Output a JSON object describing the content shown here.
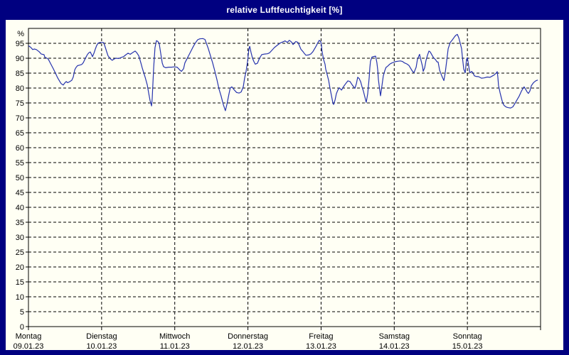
{
  "window": {
    "title": "relative Luftfeuchtigkeit [%]"
  },
  "colors": {
    "frame_bg": "#000080",
    "panel_bg": "#fffff4",
    "line": "#2633ad",
    "grid": "#000000",
    "title_text": "#ffffff"
  },
  "chart_data": {
    "type": "line",
    "title": "relative Luftfeuchtigkeit [%]",
    "ylabel": "%",
    "ylim": [
      0,
      100
    ],
    "y_ticks": [
      0,
      5,
      10,
      15,
      20,
      25,
      30,
      35,
      40,
      45,
      50,
      55,
      60,
      65,
      70,
      75,
      80,
      85,
      90,
      95
    ],
    "grid": "black dashed; horizontal every 5%, vertical at each day boundary",
    "legend_position": "none",
    "x_total_hours": 168,
    "x_days": [
      {
        "name": "Montag",
        "date": "09.01.23"
      },
      {
        "name": "Dienstag",
        "date": "10.01.23"
      },
      {
        "name": "Mittwoch",
        "date": "11.01.23"
      },
      {
        "name": "Donnerstag",
        "date": "12.01.23"
      },
      {
        "name": "Freitag",
        "date": "13.01.23"
      },
      {
        "name": "Samstag",
        "date": "14.01.23"
      },
      {
        "name": "Sonntag",
        "date": "15.01.23"
      }
    ],
    "series": [
      {
        "name": "relative Luftfeuchtigkeit",
        "unit": "%",
        "color": "#2633ad",
        "points": [
          [
            0,
            94.2
          ],
          [
            0.7,
            93.7
          ],
          [
            1.4,
            92.9
          ],
          [
            1.9,
            93.1
          ],
          [
            2.6,
            92.9
          ],
          [
            3.5,
            92.2
          ],
          [
            4.2,
            91.4
          ],
          [
            5.1,
            91.2
          ],
          [
            5.4,
            90.3
          ],
          [
            6.1,
            90.0
          ],
          [
            6.5,
            89.7
          ],
          [
            7.2,
            88.3
          ],
          [
            8.2,
            86.4
          ],
          [
            8.9,
            84.9
          ],
          [
            9.6,
            83.4
          ],
          [
            10.3,
            82.2
          ],
          [
            10.7,
            81.5
          ],
          [
            11.4,
            81.0
          ],
          [
            11.9,
            81.7
          ],
          [
            12.4,
            82.2
          ],
          [
            12.8,
            81.8
          ],
          [
            13.3,
            82.0
          ],
          [
            14.2,
            82.6
          ],
          [
            14.7,
            83.7
          ],
          [
            15.2,
            86.1
          ],
          [
            15.6,
            86.9
          ],
          [
            16.1,
            87.5
          ],
          [
            16.8,
            87.7
          ],
          [
            17.5,
            87.9
          ],
          [
            18.0,
            88.5
          ],
          [
            18.4,
            89.4
          ],
          [
            18.9,
            90.4
          ],
          [
            19.4,
            91.3
          ],
          [
            19.8,
            91.8
          ],
          [
            20.3,
            92.1
          ],
          [
            20.8,
            91.0
          ],
          [
            21.0,
            90.5
          ],
          [
            21.5,
            91.7
          ],
          [
            21.9,
            93.0
          ],
          [
            22.4,
            94.3
          ],
          [
            22.9,
            95.1
          ],
          [
            23.6,
            95.3
          ],
          [
            24.3,
            95.3
          ],
          [
            24.7,
            95.2
          ],
          [
            25.2,
            93.7
          ],
          [
            25.7,
            92.1
          ],
          [
            26.1,
            90.8
          ],
          [
            26.6,
            90.2
          ],
          [
            27.1,
            89.6
          ],
          [
            27.5,
            89.3
          ],
          [
            28.0,
            89.7
          ],
          [
            28.7,
            90.0
          ],
          [
            29.6,
            89.9
          ],
          [
            30.3,
            90.2
          ],
          [
            31.3,
            90.6
          ],
          [
            32.0,
            91.2
          ],
          [
            32.7,
            91.7
          ],
          [
            33.4,
            91.3
          ],
          [
            34.1,
            91.8
          ],
          [
            35.0,
            92.4
          ],
          [
            35.5,
            91.9
          ],
          [
            36.2,
            90.8
          ],
          [
            36.9,
            88.4
          ],
          [
            37.3,
            86.8
          ],
          [
            37.8,
            85.2
          ],
          [
            38.3,
            83.6
          ],
          [
            39.0,
            81.0
          ],
          [
            39.4,
            78.5
          ],
          [
            39.9,
            75.8
          ],
          [
            40.4,
            74.0
          ],
          [
            40.6,
            76.5
          ],
          [
            41.1,
            87.0
          ],
          [
            41.5,
            93.5
          ],
          [
            42.0,
            95.9
          ],
          [
            42.5,
            95.6
          ],
          [
            42.9,
            94.8
          ],
          [
            43.4,
            91.6
          ],
          [
            43.9,
            88.4
          ],
          [
            44.3,
            87.2
          ],
          [
            45.0,
            86.8
          ],
          [
            46.0,
            87.0
          ],
          [
            46.9,
            87.0
          ],
          [
            47.8,
            87.1
          ],
          [
            48.8,
            87.0
          ],
          [
            49.7,
            86.0
          ],
          [
            50.2,
            85.6
          ],
          [
            50.9,
            86.5
          ],
          [
            51.3,
            88.4
          ],
          [
            52.0,
            89.8
          ],
          [
            52.7,
            91.2
          ],
          [
            53.4,
            92.6
          ],
          [
            54.1,
            94.0
          ],
          [
            54.8,
            95.2
          ],
          [
            55.5,
            96.2
          ],
          [
            56.2,
            96.5
          ],
          [
            57.2,
            96.6
          ],
          [
            57.9,
            96.3
          ],
          [
            58.3,
            95.2
          ],
          [
            59.0,
            93.2
          ],
          [
            59.7,
            90.8
          ],
          [
            60.4,
            88.5
          ],
          [
            61.1,
            85.8
          ],
          [
            61.8,
            82.9
          ],
          [
            62.5,
            79.7
          ],
          [
            63.2,
            77.3
          ],
          [
            63.9,
            74.5
          ],
          [
            64.6,
            72.4
          ],
          [
            65.1,
            74.5
          ],
          [
            65.8,
            78.1
          ],
          [
            66.2,
            80.0
          ],
          [
            66.7,
            80.4
          ],
          [
            67.4,
            79.5
          ],
          [
            68.3,
            78.5
          ],
          [
            69.1,
            78.3
          ],
          [
            69.8,
            78.7
          ],
          [
            70.5,
            80.5
          ],
          [
            70.9,
            83.3
          ],
          [
            71.4,
            85.6
          ],
          [
            71.9,
            89.0
          ],
          [
            72.3,
            93.0
          ],
          [
            72.6,
            94.0
          ],
          [
            73.0,
            92.0
          ],
          [
            73.5,
            90.0
          ],
          [
            74.0,
            88.8
          ],
          [
            74.4,
            88.0
          ],
          [
            75.1,
            88.3
          ],
          [
            75.8,
            90.0
          ],
          [
            76.5,
            91.2
          ],
          [
            77.5,
            91.4
          ],
          [
            78.4,
            91.5
          ],
          [
            79.1,
            91.8
          ],
          [
            79.8,
            92.6
          ],
          [
            80.7,
            93.6
          ],
          [
            81.7,
            94.4
          ],
          [
            82.6,
            95.1
          ],
          [
            83.5,
            95.5
          ],
          [
            84.2,
            95.8
          ],
          [
            84.9,
            95.3
          ],
          [
            85.6,
            96.0
          ],
          [
            86.3,
            95.4
          ],
          [
            86.8,
            94.6
          ],
          [
            87.3,
            95.2
          ],
          [
            87.7,
            95.6
          ],
          [
            88.4,
            95.3
          ],
          [
            88.9,
            94.2
          ],
          [
            89.4,
            93.0
          ],
          [
            90.1,
            92.2
          ],
          [
            90.5,
            91.6
          ],
          [
            91.0,
            91.0
          ],
          [
            91.9,
            91.1
          ],
          [
            92.6,
            91.4
          ],
          [
            93.3,
            92.2
          ],
          [
            94.0,
            93.4
          ],
          [
            94.5,
            94.3
          ],
          [
            95.0,
            95.3
          ],
          [
            95.4,
            96.0
          ],
          [
            95.9,
            95.5
          ],
          [
            96.1,
            94.5
          ],
          [
            96.3,
            92.4
          ],
          [
            96.8,
            89.6
          ],
          [
            97.3,
            88.0
          ],
          [
            97.5,
            86.4
          ],
          [
            98.0,
            84.5
          ],
          [
            98.5,
            82.5
          ],
          [
            98.9,
            80.0
          ],
          [
            99.4,
            77.5
          ],
          [
            99.9,
            74.9
          ],
          [
            100.1,
            74.5
          ],
          [
            100.6,
            76.0
          ],
          [
            101.0,
            78.1
          ],
          [
            101.5,
            79.3
          ],
          [
            102.0,
            80.1
          ],
          [
            102.7,
            79.3
          ],
          [
            103.4,
            80.5
          ],
          [
            104.1,
            81.5
          ],
          [
            104.8,
            82.4
          ],
          [
            105.5,
            82.2
          ],
          [
            106.2,
            81.1
          ],
          [
            106.6,
            80.5
          ],
          [
            107.1,
            79.9
          ],
          [
            107.6,
            81.5
          ],
          [
            108.0,
            83.6
          ],
          [
            108.5,
            83.2
          ],
          [
            109.0,
            82.1
          ],
          [
            109.4,
            80.5
          ],
          [
            109.9,
            78.9
          ],
          [
            110.4,
            76.9
          ],
          [
            110.8,
            75.2
          ],
          [
            111.3,
            78.1
          ],
          [
            111.8,
            83.6
          ],
          [
            112.0,
            86.8
          ],
          [
            112.2,
            89.0
          ],
          [
            112.7,
            90.4
          ],
          [
            113.4,
            90.6
          ],
          [
            113.9,
            90.7
          ],
          [
            114.3,
            88.5
          ],
          [
            114.6,
            86.1
          ],
          [
            114.8,
            82.9
          ],
          [
            115.3,
            78.9
          ],
          [
            115.5,
            77.4
          ],
          [
            116.0,
            80.9
          ],
          [
            116.4,
            84.1
          ],
          [
            116.9,
            85.8
          ],
          [
            117.3,
            86.9
          ],
          [
            117.8,
            87.3
          ],
          [
            118.5,
            88.0
          ],
          [
            119.2,
            88.4
          ],
          [
            119.9,
            88.7
          ],
          [
            120.6,
            88.9
          ],
          [
            121.3,
            89.0
          ],
          [
            122.0,
            89.1
          ],
          [
            122.7,
            88.9
          ],
          [
            123.4,
            88.4
          ],
          [
            124.1,
            88.1
          ],
          [
            124.8,
            87.6
          ],
          [
            125.5,
            86.4
          ],
          [
            126.0,
            85.6
          ],
          [
            126.5,
            85.2
          ],
          [
            127.2,
            87.0
          ],
          [
            127.6,
            89.6
          ],
          [
            128.3,
            91.3
          ],
          [
            128.8,
            89.2
          ],
          [
            129.3,
            87.2
          ],
          [
            129.5,
            85.6
          ],
          [
            130.0,
            86.8
          ],
          [
            130.4,
            89.2
          ],
          [
            130.9,
            91.0
          ],
          [
            131.4,
            92.4
          ],
          [
            131.8,
            92.1
          ],
          [
            132.5,
            90.8
          ],
          [
            133.0,
            90.0
          ],
          [
            133.5,
            89.6
          ],
          [
            134.0,
            88.8
          ],
          [
            134.4,
            88.7
          ],
          [
            134.9,
            86.0
          ],
          [
            135.3,
            84.8
          ],
          [
            135.8,
            83.6
          ],
          [
            136.3,
            82.5
          ],
          [
            136.7,
            85.0
          ],
          [
            137.2,
            89.0
          ],
          [
            137.7,
            93.2
          ],
          [
            138.4,
            95.3
          ],
          [
            139.1,
            96.2
          ],
          [
            139.8,
            97.2
          ],
          [
            140.2,
            97.7
          ],
          [
            140.7,
            98.0
          ],
          [
            141.2,
            96.8
          ],
          [
            141.6,
            95.2
          ],
          [
            142.1,
            93.2
          ],
          [
            142.3,
            90.8
          ],
          [
            142.8,
            86.4
          ],
          [
            143.3,
            85.1
          ],
          [
            143.7,
            89.6
          ],
          [
            144.0,
            90.2
          ],
          [
            144.4,
            87.6
          ],
          [
            144.7,
            85.6
          ],
          [
            144.9,
            85.1
          ],
          [
            145.4,
            85.6
          ],
          [
            145.8,
            85.1
          ],
          [
            146.3,
            84.1
          ],
          [
            146.8,
            83.9
          ],
          [
            147.7,
            83.8
          ],
          [
            148.6,
            83.3
          ],
          [
            149.5,
            83.4
          ],
          [
            150.5,
            83.7
          ],
          [
            151.4,
            83.6
          ],
          [
            152.1,
            84.0
          ],
          [
            152.8,
            84.4
          ],
          [
            153.5,
            85.1
          ],
          [
            153.8,
            85.5
          ],
          [
            154.0,
            83.6
          ],
          [
            154.2,
            80.9
          ],
          [
            154.7,
            78.5
          ],
          [
            155.2,
            76.5
          ],
          [
            155.6,
            74.9
          ],
          [
            156.1,
            74.1
          ],
          [
            156.8,
            73.6
          ],
          [
            157.5,
            73.4
          ],
          [
            158.2,
            73.3
          ],
          [
            158.9,
            73.7
          ],
          [
            159.6,
            74.8
          ],
          [
            160.3,
            76.1
          ],
          [
            161.0,
            77.3
          ],
          [
            161.7,
            78.9
          ],
          [
            162.2,
            79.8
          ],
          [
            162.6,
            80.4
          ],
          [
            163.1,
            79.6
          ],
          [
            163.6,
            78.7
          ],
          [
            164.0,
            78.2
          ],
          [
            164.5,
            79.0
          ],
          [
            165.0,
            80.8
          ],
          [
            165.7,
            81.8
          ],
          [
            166.4,
            82.4
          ],
          [
            167.1,
            82.7
          ]
        ]
      }
    ]
  }
}
